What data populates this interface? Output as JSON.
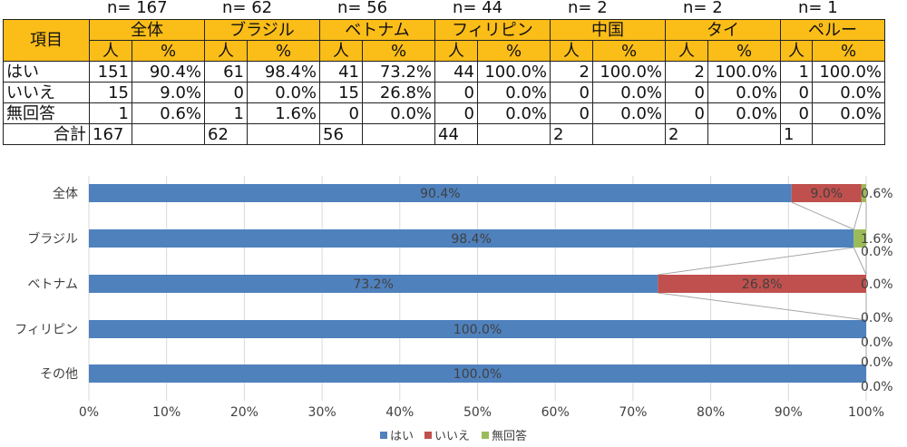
{
  "table": {
    "n_labels": [
      "n= 167",
      "n= 62",
      "n= 56",
      "n= 44",
      "n= 2",
      "n= 2",
      "n= 1"
    ],
    "item_header": "項目",
    "groups": [
      "全体",
      "ブラジル",
      "ベトナム",
      "フィリピン",
      "中国",
      "タイ",
      "ペルー"
    ],
    "sub_person": "人",
    "sub_percent": "%",
    "rows": [
      {
        "label": "はい",
        "cells": [
          "151",
          "90.4%",
          "61",
          "98.4%",
          "41",
          "73.2%",
          "44",
          "100.0%",
          "2",
          "100.0%",
          "2",
          "100.0%",
          "1",
          "100.0%"
        ]
      },
      {
        "label": "いいえ",
        "cells": [
          "15",
          "9.0%",
          "0",
          "0.0%",
          "15",
          "26.8%",
          "0",
          "0.0%",
          "0",
          "0.0%",
          "0",
          "0.0%",
          "0",
          "0.0%"
        ]
      },
      {
        "label": "無回答",
        "cells": [
          "1",
          "0.6%",
          "1",
          "1.6%",
          "0",
          "0.0%",
          "0",
          "0.0%",
          "0",
          "0.0%",
          "0",
          "0.0%",
          "0",
          "0.0%"
        ]
      }
    ],
    "total_label": "合計",
    "totals": [
      "167",
      "62",
      "56",
      "44",
      "2",
      "2",
      "1"
    ]
  },
  "chart_data": {
    "type": "bar",
    "orientation": "horizontal",
    "stacked": "100%",
    "categories": [
      "全体",
      "ブラジル",
      "ベトナム",
      "フィリピン",
      "その他"
    ],
    "series": [
      {
        "name": "はい",
        "color": "#4f81bd",
        "values": [
          90.4,
          98.4,
          73.2,
          100.0,
          100.0
        ],
        "labels": [
          "90.4%",
          "98.4%",
          "73.2%",
          "100.0%",
          "100.0%"
        ]
      },
      {
        "name": "いいえ",
        "color": "#c0504d",
        "values": [
          9.0,
          0.0,
          26.8,
          0.0,
          0.0
        ],
        "labels": [
          "9.0%",
          "0.0%",
          "26.8%",
          "0.0%",
          "0.0%"
        ]
      },
      {
        "name": "無回答",
        "color": "#9bbb59",
        "values": [
          0.6,
          1.6,
          0.0,
          0.0,
          0.0
        ],
        "labels": [
          "0.6%",
          "1.6%",
          "0.0%",
          "0.0%",
          "0.0%"
        ]
      }
    ],
    "xticks": [
      "0%",
      "10%",
      "20%",
      "30%",
      "40%",
      "50%",
      "60%",
      "70%",
      "80%",
      "90%",
      "100%"
    ],
    "xlim": [
      0,
      100
    ],
    "grid": true,
    "series_lines": true,
    "legend_position": "bottom"
  }
}
